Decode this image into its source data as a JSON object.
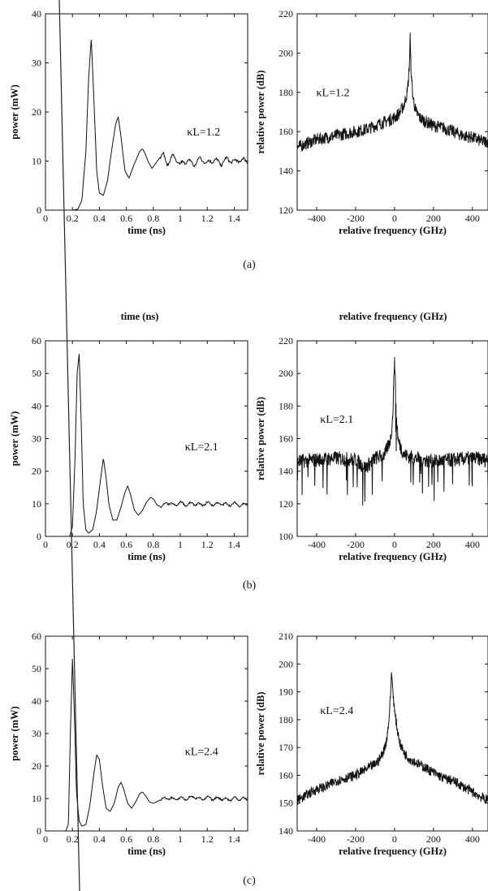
{
  "captions": [
    "(a)",
    "(b)",
    "(c)"
  ],
  "stray_labels": {
    "time": "time (ns)",
    "frequency": "relative frequency (GHz)"
  },
  "colors": {
    "trace": "#111111",
    "axes": "#111111",
    "background": "#ffffff"
  },
  "chart_data": [
    {
      "type": "line",
      "panel": "a-time",
      "xlabel": "time (ns)",
      "ylabel": "power (mW)",
      "annotation": "κL=1.2",
      "xlim": [
        0,
        1.5
      ],
      "ylim": [
        0,
        40
      ],
      "xticks": [
        0,
        0.2,
        0.4,
        0.6,
        0.8,
        1,
        1.2,
        1.4
      ],
      "xtick_labels": [
        "0",
        "0.2",
        "0.4",
        "0.6",
        "0.8",
        "1",
        "1.2",
        "1.4"
      ],
      "yticks": [
        0,
        10,
        20,
        30,
        40
      ],
      "ytick_labels": [
        "0",
        "10",
        "20",
        "30",
        "40"
      ],
      "grid": false,
      "series": [
        {
          "x": [
            0,
            0.2,
            0.24,
            0.27,
            0.3,
            0.32,
            0.34,
            0.36,
            0.38,
            0.4,
            0.43,
            0.46,
            0.49,
            0.52,
            0.54,
            0.56,
            0.59,
            0.62,
            0.66,
            0.7,
            0.72,
            0.74,
            0.76,
            0.79,
            0.83,
            0.87,
            0.9,
            0.95,
            1.0,
            1.05,
            1.1,
            1.15,
            1.2,
            1.25,
            1.3,
            1.35,
            1.4,
            1.45,
            1.5
          ],
          "y": [
            0,
            0,
            0.2,
            2,
            12,
            27,
            35,
            22,
            8,
            3.5,
            3,
            6,
            12,
            17.5,
            19,
            15,
            8,
            6.5,
            9.5,
            12,
            12.5,
            11.5,
            10,
            8.5,
            10,
            11.5,
            9.5,
            11,
            9.2,
            10.2,
            9.3,
            10.5,
            9.6,
            10.3,
            9.5,
            10.4,
            9.8,
            10.3,
            10
          ]
        }
      ]
    },
    {
      "type": "line",
      "panel": "a-spectrum",
      "xlabel": "relative frequency (GHz)",
      "ylabel": "relative power (dB)",
      "annotation": "κL=1.2",
      "xlim": [
        -500,
        480
      ],
      "ylim": [
        120,
        220
      ],
      "xticks": [
        -400,
        -200,
        0,
        200,
        400
      ],
      "xtick_labels": [
        "-400",
        "-200",
        "0",
        "200",
        "400"
      ],
      "yticks": [
        120,
        140,
        160,
        180,
        200,
        220
      ],
      "ytick_labels": [
        "120",
        "140",
        "160",
        "180",
        "200",
        "220"
      ],
      "grid": false,
      "series": [
        {
          "x": [
            -500,
            -450,
            -400,
            -350,
            -300,
            -250,
            -200,
            -150,
            -100,
            -50,
            0,
            30,
            50,
            65,
            72,
            77,
            80,
            83,
            88,
            95,
            110,
            130,
            160,
            200,
            250,
            300,
            350,
            400,
            450,
            480
          ],
          "y": [
            152,
            154,
            156,
            157,
            158,
            159,
            160,
            161,
            163,
            165,
            167,
            170,
            174,
            180,
            187,
            196,
            209,
            197,
            186,
            177,
            170,
            167,
            165,
            163,
            162,
            160,
            158,
            157,
            155,
            155
          ]
        }
      ]
    },
    {
      "type": "line",
      "panel": "b-time",
      "xlabel": "time (ns)",
      "ylabel": "power (mW)",
      "annotation": "κL=2.1",
      "xlim": [
        0,
        1.5
      ],
      "ylim": [
        0,
        60
      ],
      "xticks": [
        0,
        0.2,
        0.4,
        0.6,
        0.8,
        1,
        1.2,
        1.4
      ],
      "xtick_labels": [
        "0",
        "0.2",
        "0.4",
        "0.6",
        "0.8",
        "1",
        "1.2",
        "1.4"
      ],
      "yticks": [
        0,
        10,
        20,
        30,
        40,
        50,
        60
      ],
      "ytick_labels": [
        "0",
        "10",
        "20",
        "30",
        "40",
        "50",
        "60"
      ],
      "grid": false,
      "series": [
        {
          "x": [
            0,
            0.18,
            0.2,
            0.22,
            0.235,
            0.25,
            0.265,
            0.28,
            0.3,
            0.32,
            0.35,
            0.38,
            0.41,
            0.43,
            0.45,
            0.47,
            0.5,
            0.53,
            0.56,
            0.59,
            0.61,
            0.63,
            0.66,
            0.69,
            0.72,
            0.75,
            0.78,
            0.8,
            0.83,
            0.87,
            0.9,
            0.95,
            1.0,
            1.05,
            1.1,
            1.15,
            1.2,
            1.25,
            1.3,
            1.35,
            1.4,
            1.45,
            1.5
          ],
          "y": [
            0,
            0,
            3,
            25,
            50,
            56,
            35,
            10,
            2,
            1,
            2,
            8,
            18,
            24,
            18,
            10,
            5,
            5,
            9,
            13.5,
            15.5,
            13,
            8,
            6.5,
            8,
            10.5,
            12,
            11.5,
            9.5,
            9,
            10.5,
            9.5,
            10.3,
            9.7,
            10.1,
            9.6,
            10.2,
            9.8,
            10.1,
            9.7,
            10,
            9.6,
            9.8
          ]
        }
      ]
    },
    {
      "type": "line",
      "panel": "b-spectrum",
      "xlabel": "relative frequency (GHz)",
      "ylabel": "relative power (dB)",
      "annotation": "κL=2.1",
      "xlim": [
        -500,
        480
      ],
      "ylim": [
        100,
        220
      ],
      "xticks": [
        -400,
        -200,
        0,
        200,
        400
      ],
      "xtick_labels": [
        "-400",
        "-200",
        "0",
        "200",
        "400"
      ],
      "yticks": [
        100,
        120,
        140,
        160,
        180,
        200,
        220
      ],
      "ytick_labels": [
        "100",
        "120",
        "140",
        "160",
        "180",
        "200",
        "220"
      ],
      "grid": false,
      "series": [
        {
          "x": [
            -500,
            -400,
            -300,
            -200,
            -150,
            -100,
            -50,
            -20,
            -10,
            -5,
            0,
            5,
            10,
            20,
            50,
            100,
            150,
            200,
            300,
            400,
            480
          ],
          "y": [
            146,
            147,
            148,
            147,
            142,
            148,
            150,
            160,
            172,
            190,
            210,
            190,
            172,
            158,
            150,
            148,
            147,
            146,
            147,
            148,
            147
          ]
        }
      ]
    },
    {
      "type": "line",
      "panel": "c-time",
      "xlabel": "time (ns)",
      "ylabel": "power (mW)",
      "annotation": "κL=2.4",
      "xlim": [
        0,
        1.5
      ],
      "ylim": [
        0,
        60
      ],
      "xticks": [
        0,
        0.2,
        0.4,
        0.6,
        0.8,
        1,
        1.2,
        1.4
      ],
      "xtick_labels": [
        "0",
        "0.2",
        "0.4",
        "0.6",
        "0.8",
        "1",
        "1.2",
        "1.4"
      ],
      "yticks": [
        0,
        10,
        20,
        30,
        40,
        50,
        60
      ],
      "ytick_labels": [
        "0",
        "10",
        "20",
        "30",
        "40",
        "50",
        "60"
      ],
      "grid": false,
      "series": [
        {
          "x": [
            0,
            0.15,
            0.17,
            0.185,
            0.2,
            0.215,
            0.23,
            0.25,
            0.27,
            0.3,
            0.33,
            0.36,
            0.38,
            0.4,
            0.42,
            0.45,
            0.48,
            0.51,
            0.54,
            0.56,
            0.58,
            0.61,
            0.64,
            0.67,
            0.7,
            0.72,
            0.74,
            0.77,
            0.8,
            0.85,
            0.9,
            0.95,
            1.0,
            1.05,
            1.1,
            1.15,
            1.2,
            1.25,
            1.3,
            1.35,
            1.4,
            1.45,
            1.5
          ],
          "y": [
            0,
            0,
            2,
            30,
            53,
            35,
            12,
            3,
            1.5,
            2,
            8,
            18,
            23.5,
            22,
            15,
            7,
            6,
            8.5,
            13.5,
            15,
            13,
            8.5,
            7,
            9,
            11.5,
            12,
            11,
            9,
            8.5,
            9.5,
            10.2,
            9.8,
            10.1,
            9.9,
            10.6,
            9.8,
            10.2,
            9.9,
            10.1,
            9.6,
            10,
            9.9,
            9.7
          ]
        }
      ]
    },
    {
      "type": "line",
      "panel": "c-spectrum",
      "xlabel": "relative frequency (GHz)",
      "ylabel": "relative power (dB)",
      "annotation": "κL=2.4",
      "xlim": [
        -500,
        480
      ],
      "ylim": [
        140,
        210
      ],
      "xticks": [
        -400,
        -200,
        0,
        200,
        400
      ],
      "xtick_labels": [
        "-400",
        "-200",
        "0",
        "200",
        "400"
      ],
      "yticks": [
        140,
        150,
        160,
        170,
        180,
        190,
        200,
        210
      ],
      "ytick_labels": [
        "140",
        "150",
        "160",
        "170",
        "180",
        "190",
        "200",
        "210"
      ],
      "grid": false,
      "series": [
        {
          "x": [
            -500,
            -450,
            -400,
            -350,
            -300,
            -250,
            -200,
            -150,
            -100,
            -75,
            -55,
            -40,
            -30,
            -25,
            -20,
            -15,
            -10,
            0,
            15,
            30,
            50,
            75,
            100,
            150,
            200,
            250,
            300,
            350,
            400,
            450,
            480
          ],
          "y": [
            151,
            153,
            155,
            156,
            158,
            159,
            160,
            162,
            164,
            166,
            169,
            173,
            179,
            184,
            190,
            197,
            192,
            183,
            176,
            171,
            168,
            166,
            165,
            163,
            161,
            159,
            158,
            156,
            154,
            152,
            151
          ]
        }
      ]
    }
  ]
}
